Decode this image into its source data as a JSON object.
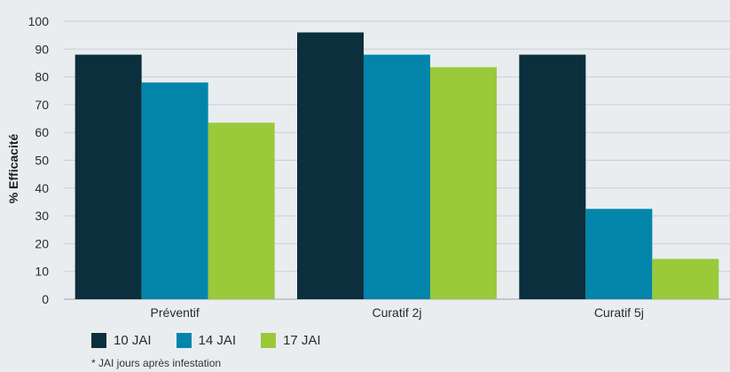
{
  "chart_data": {
    "type": "bar",
    "categories": [
      "Préventif",
      "Curatif 2j",
      "Curatif 5j"
    ],
    "series": [
      {
        "name": "10 JAI",
        "values": [
          88,
          96,
          88
        ],
        "color": "#0b2f3c"
      },
      {
        "name": "14 JAI",
        "values": [
          78,
          88,
          32.5
        ],
        "color": "#0385ab"
      },
      {
        "name": "17 JAI",
        "values": [
          63.5,
          83.5,
          14.5
        ],
        "color": "#9ac93a"
      }
    ],
    "ylabel": "% Efficacité",
    "xlabel": "",
    "ylim": [
      0,
      100
    ],
    "yticks": [
      0,
      10,
      20,
      30,
      40,
      50,
      60,
      70,
      80,
      90,
      100
    ],
    "grid": true,
    "legend_position": "bottom-left"
  },
  "footnote": "* JAI jours après infestation"
}
